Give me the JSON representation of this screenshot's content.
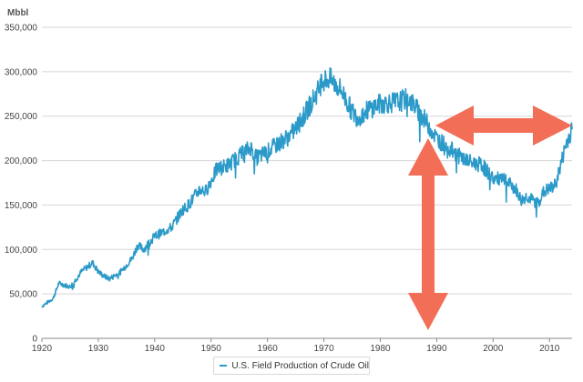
{
  "chart_data": {
    "type": "line",
    "title": "",
    "unit_label": "Mbbl",
    "xlabel": "",
    "ylabel": "Mbbl",
    "xlim": [
      1920,
      2014
    ],
    "ylim": [
      0,
      350000
    ],
    "x_ticks": [
      1920,
      1930,
      1940,
      1950,
      1960,
      1970,
      1980,
      1990,
      2000,
      2010
    ],
    "y_ticks": [
      0,
      50000,
      100000,
      150000,
      200000,
      250000,
      300000,
      350000
    ],
    "y_tick_labels": [
      "0",
      "50,000",
      "100,000",
      "150,000",
      "200,000",
      "250,000",
      "300,000",
      "350,000"
    ],
    "grid": true,
    "legend_position": "bottom",
    "series": [
      {
        "name": "U.S. Field Production of Crude Oil",
        "color": "#2b9ac9",
        "x": [
          1920,
          1922,
          1923,
          1924,
          1925,
          1926,
          1927,
          1929,
          1930,
          1931,
          1932,
          1934,
          1936,
          1937,
          1938,
          1940,
          1941,
          1943,
          1945,
          1946,
          1948,
          1949,
          1951,
          1953,
          1955,
          1957,
          1958,
          1960,
          1962,
          1964,
          1966,
          1968,
          1970,
          1971,
          1973,
          1975,
          1976,
          1978,
          1980,
          1983,
          1985,
          1986,
          1988,
          1990,
          1992,
          1994,
          1996,
          1998,
          2000,
          2002,
          2004,
          2005,
          2006,
          2007,
          2008,
          2009,
          2010,
          2011,
          2012,
          2013,
          2014
        ],
        "values": [
          36000,
          45000,
          62000,
          60000,
          58000,
          66000,
          75000,
          85000,
          75000,
          70000,
          67000,
          75000,
          90000,
          105000,
          100000,
          115000,
          118000,
          125000,
          145000,
          150000,
          168000,
          165000,
          190000,
          195000,
          205000,
          215000,
          203000,
          210000,
          220000,
          228000,
          245000,
          268000,
          290000,
          292000,
          280000,
          255000,
          248000,
          258000,
          264000,
          266000,
          270000,
          262000,
          245000,
          225000,
          215000,
          205000,
          198000,
          195000,
          180000,
          178000,
          168000,
          155000,
          160000,
          155000,
          152000,
          165000,
          168000,
          172000,
          195000,
          220000,
          235000
        ]
      }
    ],
    "annotations": [
      {
        "type": "double-arrow",
        "orientation": "vertical",
        "color": "#f26e57"
      },
      {
        "type": "double-arrow",
        "orientation": "horizontal",
        "color": "#f26e57"
      }
    ]
  }
}
